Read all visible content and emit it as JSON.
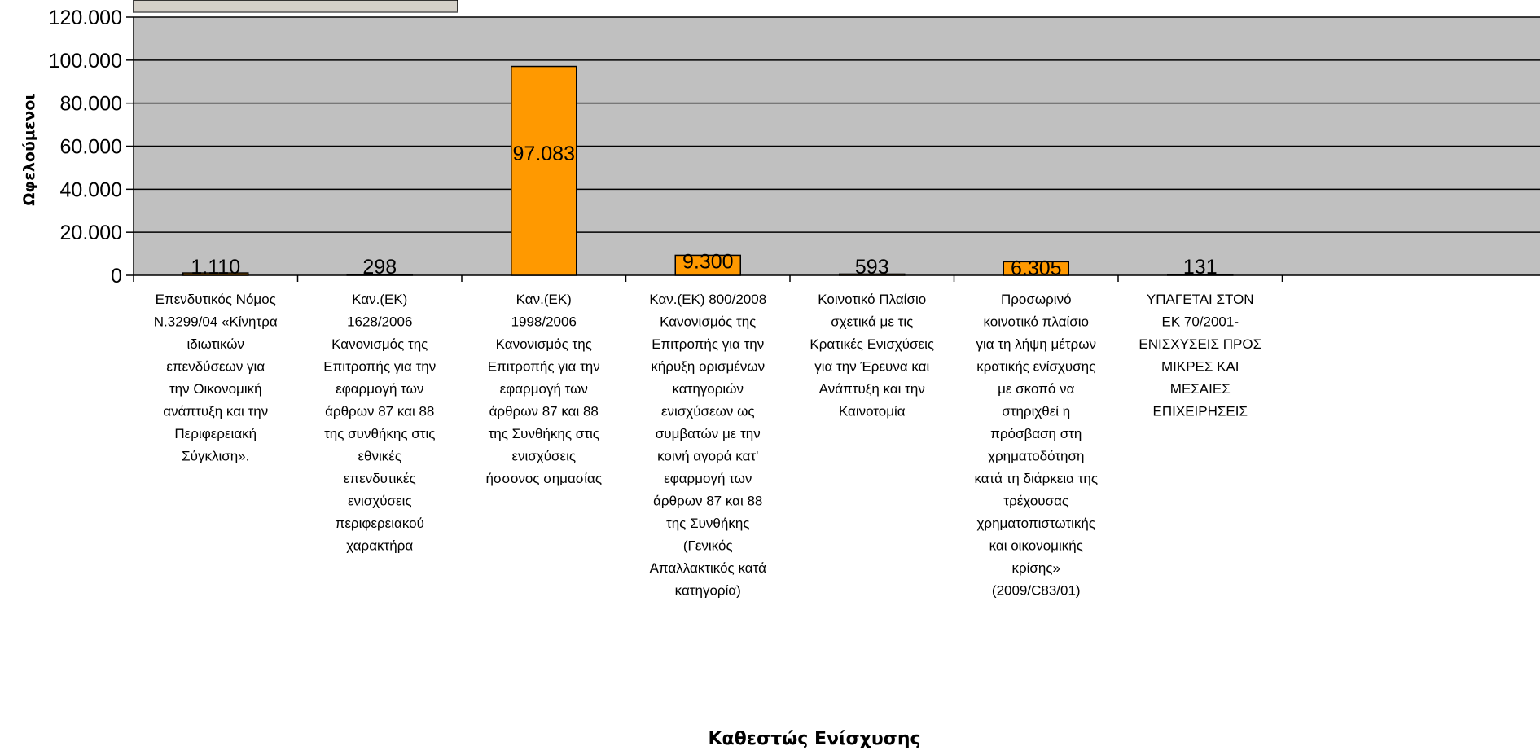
{
  "chart_data": {
    "type": "bar",
    "xlabel": "Καθεστώς Ενίσχυσης",
    "ylabel": "Ωφελούμενοι",
    "ylim": [
      0,
      120000
    ],
    "yticks": [
      0,
      20000,
      40000,
      60000,
      80000,
      100000,
      120000
    ],
    "ytick_labels": [
      "0",
      "20.000",
      "40.000",
      "60.000",
      "80.000",
      "100.000",
      "120.000"
    ],
    "grid": true,
    "plot_background": "#c0c0c0",
    "bar_color": "#ff9900",
    "categories": [
      [
        "Επενδυτικός Νόμος",
        "Ν.3299/04 «Κίνητρα",
        "ιδιωτικών",
        "επενδύσεων για",
        "την Οικονομική",
        "ανάπτυξη και την",
        "Περιφερειακή",
        "Σύγκλιση»."
      ],
      [
        "Καν.(ΕΚ)",
        "1628/2006",
        "Κανονισμός της",
        "Επιτροπής για την",
        "εφαρμογή των",
        "άρθρων 87 και 88",
        "της συνθήκης στις",
        "εθνικές",
        "επενδυτικές",
        "ενισχύσεις",
        "περιφερειακού",
        "χαρακτήρα"
      ],
      [
        "Καν.(ΕΚ)",
        "1998/2006",
        "Κανονισμός της",
        "Επιτροπής για την",
        "εφαρμογή  των",
        "άρθρων 87 και 88",
        "της Συνθήκης στις",
        "ενισχύσεις",
        "ήσσονος σημασίας"
      ],
      [
        "Καν.(ΕΚ) 800/2008",
        "Κανονισμός της",
        "Επιτροπής για την",
        "κήρυξη ορισμένων",
        "κατηγοριών",
        "ενισχύσεων ως",
        "συμβατών με την",
        "κοινή αγορά κατ'",
        "εφαρμογή των",
        "άρθρων 87 και 88",
        "της Συνθήκης",
        "(Γενικός",
        "Απαλλακτικός κατά",
        "κατηγορία)"
      ],
      [
        "Κοινοτικό Πλαίσιο",
        "σχετικά με τις",
        "Κρατικές Ενισχύσεις",
        "για την Έρευνα και",
        "Ανάπτυξη και την",
        "Καινοτομία"
      ],
      [
        "Προσωρινό",
        "κοινοτικό πλαίσιο",
        "για τη λήψη μέτρων",
        "κρατικής ενίσχυσης",
        "με σκοπό να",
        "στηριχθεί η",
        "πρόσβαση στη",
        "χρηματοδότηση",
        "κατά τη διάρκεια της",
        "τρέχουσας",
        "χρηματοπιστωτικής",
        "και οικονομικής",
        "κρίσης»",
        "(2009/C83/01)"
      ],
      [
        "ΥΠΑΓΕΤΑΙ ΣΤΟΝ",
        "ΕΚ 70/2001-",
        "ΕΝΙΣΧΥΣΕΙΣ ΠΡΟΣ",
        "ΜΙΚΡΕΣ ΚΑΙ",
        "ΜΕΣΑΙΕΣ",
        "ΕΠΙΧΕΙΡΗΣΕΙΣ"
      ]
    ],
    "values": [
      1110,
      298,
      97083,
      9300,
      593,
      6305,
      131
    ],
    "value_labels": [
      "1.110",
      "298",
      "97.083",
      "9.300",
      "593",
      "6.305",
      "131"
    ]
  }
}
